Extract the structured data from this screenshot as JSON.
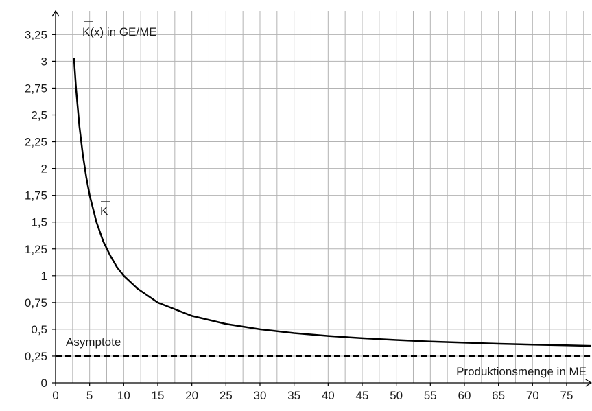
{
  "chart_data": {
    "type": "line",
    "ylabel": "K(x) in GE/ME",
    "xlabel": "Produktionsmenge in ME",
    "curve_label": "K",
    "asymptote_label": "Asymptote",
    "xlim": [
      0,
      78.6
    ],
    "ylim": [
      0,
      3.47
    ],
    "grid": true,
    "x_ticks": [
      0,
      5,
      10,
      15,
      20,
      25,
      30,
      35,
      40,
      45,
      50,
      55,
      60,
      65,
      70,
      75
    ],
    "x_tick_labels": [
      "0",
      "5",
      "10",
      "15",
      "20",
      "25",
      "30",
      "35",
      "40",
      "45",
      "50",
      "55",
      "60",
      "65",
      "70",
      "75"
    ],
    "y_ticks": [
      0,
      0.25,
      0.5,
      0.75,
      1,
      1.25,
      1.5,
      1.75,
      2,
      2.25,
      2.5,
      2.75,
      3,
      3.25
    ],
    "y_tick_labels": [
      "0",
      "0,25",
      "0,5",
      "0,75",
      "1",
      "1,25",
      "1,5",
      "1,75",
      "2",
      "2,25",
      "2,5",
      "2,75",
      "3",
      "3,25"
    ],
    "series": [
      {
        "values_x": [
          2.7,
          3,
          3.5,
          4,
          4.5,
          5,
          6,
          7,
          8,
          9,
          10,
          12,
          15,
          20,
          25,
          30,
          35,
          40,
          45,
          50,
          55,
          60,
          65,
          70,
          75,
          78.6
        ],
        "values_y": [
          3.03,
          2.75,
          2.39,
          2.13,
          1.92,
          1.75,
          1.5,
          1.32,
          1.19,
          1.08,
          1.0,
          0.88,
          0.75,
          0.625,
          0.55,
          0.5,
          0.464,
          0.438,
          0.417,
          0.4,
          0.386,
          0.375,
          0.365,
          0.357,
          0.35,
          0.345
        ]
      }
    ],
    "asymptote_y": 0.25
  }
}
